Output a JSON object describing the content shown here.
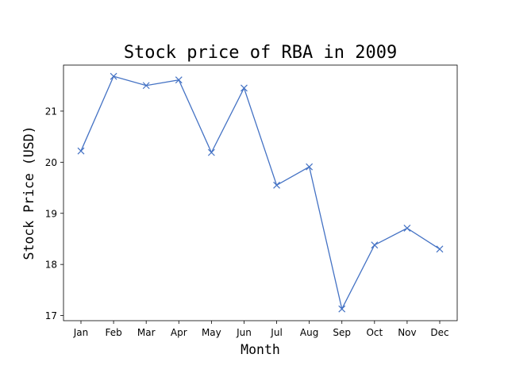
{
  "chart_data": {
    "type": "line",
    "title": "Stock price of RBA in 2009",
    "xlabel": "Month",
    "ylabel": "Stock Price (USD)",
    "categories": [
      "Jan",
      "Feb",
      "Mar",
      "Apr",
      "May",
      "Jun",
      "Jul",
      "Aug",
      "Sep",
      "Oct",
      "Nov",
      "Dec"
    ],
    "series": [
      {
        "values": [
          20.22,
          21.68,
          21.5,
          21.61,
          20.19,
          21.45,
          19.55,
          19.91,
          17.13,
          18.38,
          18.71,
          18.3
        ],
        "color": "#4472c4",
        "marker": "x"
      }
    ],
    "yticks": [
      17,
      18,
      19,
      20,
      21
    ],
    "ylim": [
      16.9,
      21.9
    ],
    "grid": false,
    "legend": "none"
  }
}
